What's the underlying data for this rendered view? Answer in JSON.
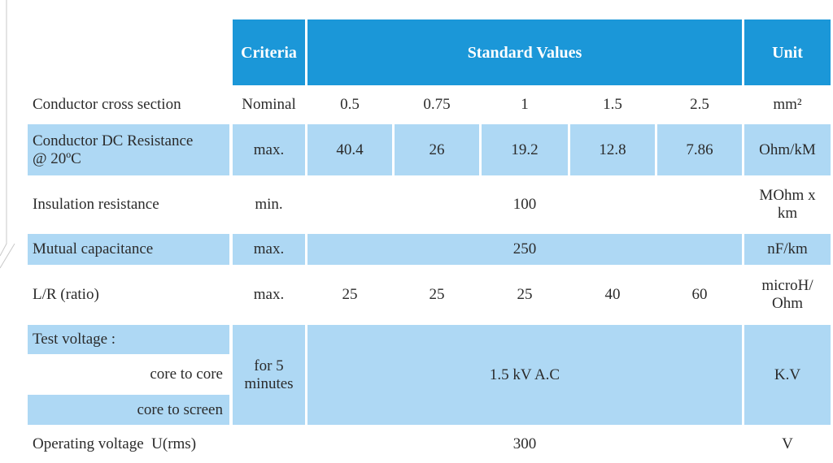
{
  "colors": {
    "header": "#1b97d8",
    "band": "#aed8f4",
    "text": "#2b2b2b"
  },
  "header": {
    "criteria": "Criteria",
    "standard_values": "Standard Values",
    "unit": "Unit"
  },
  "rows": {
    "cross_section": {
      "label": "Conductor cross section",
      "criteria": "Nominal",
      "values": [
        "0.5",
        "0.75",
        "1",
        "1.5",
        "2.5"
      ],
      "unit": "mm²"
    },
    "dc_resistance": {
      "label_line1": "Conductor DC Resistance",
      "label_line2": "@ 20ºC",
      "criteria": "max.",
      "values": [
        "40.4",
        "26",
        "19.2",
        "12.8",
        "7.86"
      ],
      "unit": "Ohm/kM"
    },
    "insulation": {
      "label": "Insulation resistance",
      "criteria": "min.",
      "value": "100",
      "unit_line1": "MOhm x",
      "unit_line2": "km"
    },
    "capacitance": {
      "label": "Mutual capacitance",
      "criteria": "max.",
      "value": "250",
      "unit": "nF/km"
    },
    "lr_ratio": {
      "label": "L/R (ratio)",
      "criteria": "max.",
      "values": [
        "25",
        "25",
        "25",
        "40",
        "60"
      ],
      "unit_line1": "microH/",
      "unit_line2": "Ohm"
    },
    "test_voltage": {
      "label": "Test voltage :",
      "sub1": "core to core",
      "sub2": "core to screen",
      "criteria_line1": "for 5",
      "criteria_line2": "minutes",
      "value": "1.5 kV A.C",
      "unit": "K.V"
    },
    "operating": {
      "label": "Operating voltage  U(rms)",
      "value": "300",
      "unit": "V"
    }
  }
}
